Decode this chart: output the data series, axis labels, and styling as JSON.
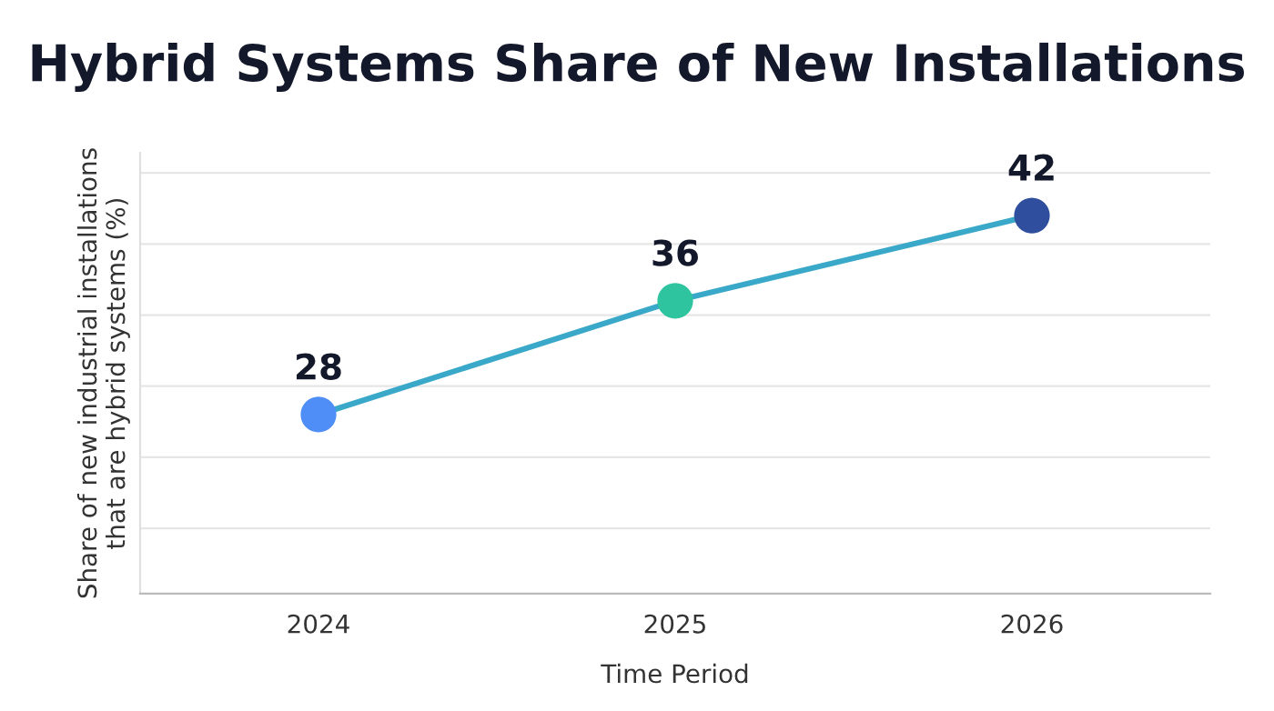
{
  "chart_data": {
    "type": "line",
    "title": "Hybrid Systems Share of New Installations",
    "xlabel": "Time Period",
    "ylabel": "Share of new industrial installations\nthat are hybrid systems (%)",
    "categories": [
      "2024",
      "2025",
      "2026"
    ],
    "series": [
      {
        "values": [
          28,
          36,
          42
        ],
        "color": "#3aa8c8",
        "colors": [
          "#4f8ef7",
          "#2ec4a0",
          "#2f4f9e"
        ]
      }
    ],
    "tick_labels": "x",
    "grid": "y",
    "marker": "circle",
    "data_labels": true,
    "legend": false
  }
}
